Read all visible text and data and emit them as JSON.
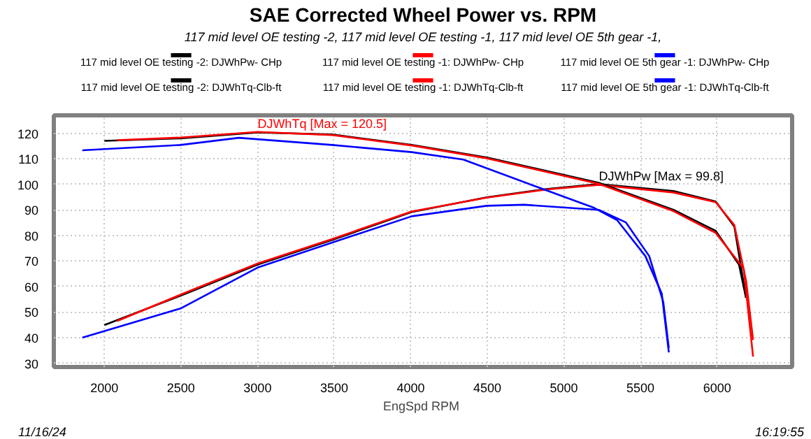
{
  "chart_data": {
    "type": "line",
    "title": "SAE Corrected Wheel Power vs. RPM",
    "subtitle": "117 mid level OE testing -2, 117 mid level OE testing -1, 117 mid level OE 5th gear -1,",
    "xlabel": "EngSpd  RPM",
    "xlim": [
      1670,
      6490
    ],
    "xticks": [
      2000,
      2500,
      3000,
      3500,
      4000,
      4500,
      5000,
      5500,
      6000
    ],
    "ylim": [
      28.5,
      127
    ],
    "yticks": [
      30,
      40,
      50,
      60,
      70,
      80,
      90,
      100,
      110,
      120
    ],
    "grid": true,
    "legend": "top",
    "marker": "none",
    "line_style": "solid",
    "series": [
      {
        "name": "117 mid level OE testing -2: DJWhPw- CHp",
        "color": "#000000",
        "x": [
          2000,
          2497,
          3000,
          3487,
          4007,
          4496,
          4892,
          5228,
          5716,
          5991,
          6113,
          6189
        ],
        "values": [
          44.9,
          56.4,
          68.6,
          78.2,
          89.2,
          94.9,
          98.2,
          100.1,
          97.4,
          93.3,
          83.4,
          55.6
        ]
      },
      {
        "name": "117 mid level OE testing -1: DJWhPw- CHp",
        "color": "#ff0000",
        "x": [
          2083,
          2497,
          3000,
          3487,
          4007,
          4496,
          4892,
          5228,
          5716,
          5991,
          6113,
          6190,
          6235
        ],
        "values": [
          46.5,
          56.8,
          69.0,
          78.6,
          89.4,
          94.8,
          98.0,
          99.8,
          96.8,
          93.0,
          84.0,
          62.0,
          39.1
        ]
      },
      {
        "name": "117 mid level OE 5th gear -1: DJWhPw- CHp",
        "color": "#0000ff",
        "x": [
          1856,
          2497,
          3000,
          3487,
          4007,
          4496,
          4741,
          5228,
          5405,
          5557,
          5649,
          5685
        ],
        "values": [
          40.0,
          51.4,
          67.4,
          77.2,
          87.5,
          91.6,
          92.0,
          90.0,
          85.1,
          71.9,
          53.9,
          35.9
        ]
      },
      {
        "name": "117 mid level OE testing -2: DJWhTq-Clb-ft",
        "color": "#000000",
        "x": [
          2000,
          2497,
          3000,
          3487,
          4007,
          4496,
          5228,
          5716,
          5991,
          6143,
          6189
        ],
        "values": [
          117.0,
          118.0,
          120.3,
          119.5,
          115.4,
          110.5,
          100.6,
          90.0,
          81.8,
          68.6,
          55.6
        ]
      },
      {
        "name": "117 mid level OE testing -1: DJWhTq-Clb-ft",
        "color": "#ff0000",
        "x": [
          2083,
          2497,
          3000,
          3487,
          4007,
          4496,
          5228,
          5716,
          5991,
          6174,
          6235
        ],
        "values": [
          117.3,
          118.3,
          120.5,
          119.3,
          115.2,
          110.2,
          100.2,
          89.5,
          81.0,
          67.0,
          32.6
        ]
      },
      {
        "name": "117 mid level OE 5th gear -1: DJWhTq-Clb-ft",
        "color": "#0000ff",
        "x": [
          1856,
          2497,
          2878,
          3487,
          4007,
          4343,
          4861,
          5197,
          5349,
          5532,
          5639,
          5685
        ],
        "values": [
          113.3,
          115.4,
          118.2,
          115.4,
          112.6,
          109.7,
          98.2,
          90.8,
          85.9,
          71.9,
          57.2,
          34.2
        ]
      }
    ],
    "annotations": [
      {
        "text": "DJWhTq [Max = 120.5]",
        "x": 3000,
        "y": 120.5
      },
      {
        "text": "DJWhPw [Max = 99.8]",
        "x": 5228,
        "y": 99.8
      },
      "11/16/24",
      "16:19:55"
    ]
  }
}
